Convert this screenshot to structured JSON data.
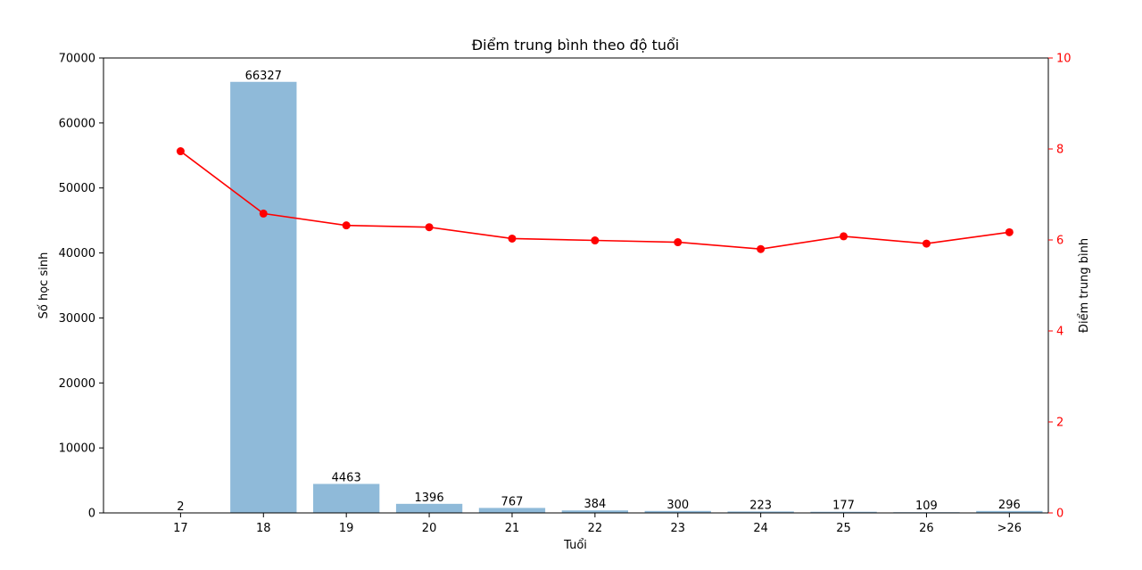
{
  "chart_data": {
    "type": "bar",
    "title": "Điểm trung bình theo độ tuổi",
    "xlabel": "Tuổi",
    "ylabel": "Số học sinh",
    "y2label": "Điểm trung bình",
    "categories": [
      "17",
      "18",
      "19",
      "20",
      "21",
      "22",
      "23",
      "24",
      "25",
      "26",
      ">26"
    ],
    "series": [
      {
        "type": "bar",
        "axis": "left",
        "values": [
          2,
          66327,
          4463,
          1396,
          767,
          384,
          300,
          223,
          177,
          109,
          296
        ],
        "color": "#8fbad9"
      },
      {
        "type": "line",
        "axis": "right",
        "values": [
          7.95,
          6.58,
          6.32,
          6.28,
          6.03,
          5.99,
          5.95,
          5.8,
          6.08,
          5.92,
          6.17
        ],
        "color": "#ff0000"
      }
    ],
    "ylim": [
      0,
      70000
    ],
    "y2lim": [
      0,
      10
    ],
    "yticks": [
      "0",
      "10000",
      "20000",
      "30000",
      "40000",
      "50000",
      "60000",
      "70000"
    ],
    "y2ticks": [
      "0",
      "2",
      "4",
      "6",
      "8",
      "10"
    ],
    "grid": false,
    "legend": "none"
  }
}
